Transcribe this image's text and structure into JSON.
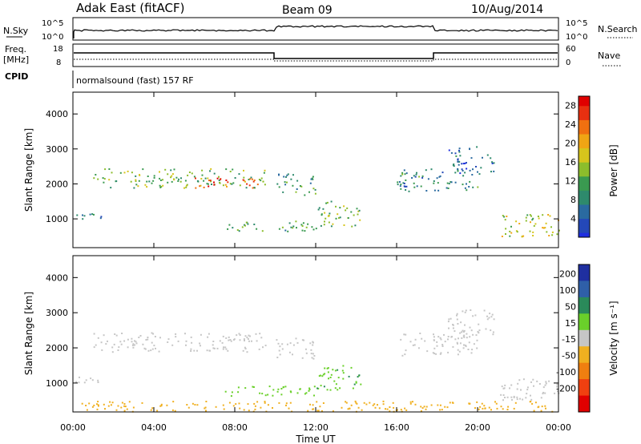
{
  "header": {
    "station": "Adak East (fitACF)",
    "beam": "Beam 09",
    "date": "10/Aug/2014"
  },
  "strip_sky": {
    "left_label": "N.Sky",
    "right_label": "N.Search",
    "ticks_left": [
      "10^5",
      "10^0"
    ],
    "ticks_right": [
      "10^5",
      "10^0"
    ]
  },
  "strip_freq": {
    "left_label_1": "Freq.",
    "left_label_2": "[MHz]",
    "right_label": "Nave",
    "ticks_left": [
      "18",
      "8"
    ],
    "ticks_right": [
      "60",
      "0"
    ]
  },
  "strip_cpid": {
    "label": "CPID",
    "value": "normalsound (fast) 157 RF"
  },
  "chart_data": [
    {
      "type": "heatmap",
      "panel": "power",
      "ylabel": "Slant Range [km]",
      "yticks": [
        1000,
        2000,
        3000,
        4000
      ],
      "ylim": [
        200,
        4600
      ],
      "xlabel": "Time UT",
      "xticks": [
        "00:00",
        "04:00",
        "08:00",
        "12:00",
        "16:00",
        "20:00",
        "00:00"
      ],
      "xlim_hours": [
        0,
        24
      ],
      "colorbar": {
        "label": "Power [dB]",
        "ticks": [
          4,
          8,
          12,
          16,
          20,
          24,
          28
        ],
        "range": [
          0,
          30
        ]
      },
      "echo_bands": [
        {
          "t": [
            1.0,
            9.5
          ],
          "r": [
            1900,
            2450
          ],
          "p": 14
        },
        {
          "t": [
            6.0,
            9.5
          ],
          "r": [
            1900,
            2200
          ],
          "p": 26
        },
        {
          "t": [
            10.0,
            12.0
          ],
          "r": [
            1700,
            2300
          ],
          "p": 10
        },
        {
          "t": [
            0.1,
            1.8
          ],
          "r": [
            1000,
            1200
          ],
          "p": 6
        },
        {
          "t": [
            7.5,
            12.0
          ],
          "r": [
            650,
            950
          ],
          "p": 12
        },
        {
          "t": [
            12.0,
            14.2
          ],
          "r": [
            800,
            1550
          ],
          "p": 14
        },
        {
          "t": [
            16.0,
            20.0
          ],
          "r": [
            1800,
            2450
          ],
          "p": 9
        },
        {
          "t": [
            18.5,
            20.8
          ],
          "r": [
            2300,
            3100
          ],
          "p": 6
        },
        {
          "t": [
            21.0,
            24.0
          ],
          "r": [
            500,
            1150
          ],
          "p": 16
        }
      ]
    },
    {
      "type": "heatmap",
      "panel": "velocity",
      "ylabel": "Slant Range [km]",
      "yticks": [
        1000,
        2000,
        3000,
        4000
      ],
      "ylim": [
        200,
        4600
      ],
      "xlabel": "Time UT",
      "xticks": [
        "00:00",
        "04:00",
        "08:00",
        "12:00",
        "16:00",
        "20:00",
        "00:00"
      ],
      "xlim_hours": [
        0,
        24
      ],
      "colorbar": {
        "label": "Velocity [m s⁻¹]",
        "ticks": [
          200,
          100,
          50,
          15,
          -15,
          -50,
          -100,
          -200
        ],
        "range": [
          -250,
          250
        ]
      },
      "echo_bands": [
        {
          "t": [
            1.0,
            9.5
          ],
          "r": [
            1900,
            2450
          ],
          "v": 0
        },
        {
          "t": [
            10.0,
            12.0
          ],
          "r": [
            1700,
            2300
          ],
          "v": 0
        },
        {
          "t": [
            0.1,
            1.8
          ],
          "r": [
            1000,
            1200
          ],
          "v": 0
        },
        {
          "t": [
            7.5,
            12.0
          ],
          "r": [
            650,
            950
          ],
          "v": 30
        },
        {
          "t": [
            12.0,
            14.2
          ],
          "r": [
            800,
            1550
          ],
          "v": 40
        },
        {
          "t": [
            16.0,
            20.0
          ],
          "r": [
            1800,
            2450
          ],
          "v": 0
        },
        {
          "t": [
            18.5,
            20.8
          ],
          "r": [
            2300,
            3100
          ],
          "v": 0
        },
        {
          "t": [
            21.0,
            24.0
          ],
          "r": [
            500,
            1150
          ],
          "v": 0
        },
        {
          "t": [
            0.0,
            24.0
          ],
          "r": [
            200,
            500
          ],
          "v": -30
        }
      ]
    }
  ]
}
